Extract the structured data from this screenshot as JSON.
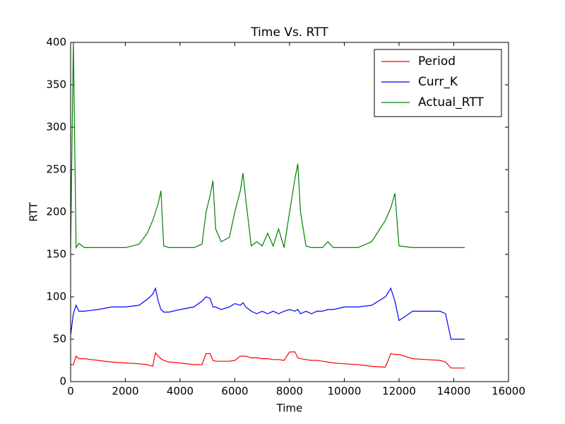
{
  "chart_data": {
    "type": "line",
    "title": "Time Vs. RTT",
    "xlabel": "Time",
    "ylabel": "RTT",
    "x": [
      0,
      100,
      200,
      300,
      500,
      1000,
      1500,
      2000,
      2500,
      2800,
      3000,
      3100,
      3200,
      3300,
      3400,
      3600,
      4000,
      4500,
      4800,
      4950,
      5100,
      5200,
      5300,
      5500,
      5800,
      6000,
      6200,
      6300,
      6400,
      6600,
      6800,
      7000,
      7200,
      7400,
      7600,
      7800,
      8000,
      8200,
      8300,
      8400,
      8600,
      8800,
      9000,
      9200,
      9400,
      9600,
      10000,
      10500,
      11000,
      11500,
      11700,
      11850,
      12000,
      12500,
      13000,
      13500,
      13700,
      13900,
      14100,
      14400
    ],
    "series": [
      {
        "name": "Period",
        "color": "#ff0000",
        "values": [
          20,
          20,
          30,
          27,
          27,
          25,
          23,
          22,
          21,
          20,
          18,
          34,
          30,
          27,
          25,
          23,
          22,
          20,
          20,
          33,
          33,
          25,
          24,
          24,
          24,
          25,
          30,
          30,
          30,
          28,
          28,
          27,
          27,
          26,
          26,
          25,
          35,
          35,
          28,
          27,
          26,
          25,
          25,
          24,
          23,
          22,
          21,
          20,
          18,
          17,
          33,
          32,
          32,
          27,
          26,
          25,
          23,
          16,
          16,
          16
        ]
      },
      {
        "name": "Curr_K",
        "color": "#0000ff",
        "values": [
          55,
          80,
          90,
          83,
          83,
          85,
          88,
          88,
          90,
          97,
          103,
          110,
          95,
          85,
          82,
          82,
          85,
          88,
          95,
          100,
          98,
          88,
          88,
          85,
          88,
          92,
          90,
          93,
          88,
          83,
          80,
          83,
          80,
          83,
          80,
          83,
          85,
          83,
          85,
          80,
          83,
          80,
          83,
          83,
          85,
          85,
          88,
          88,
          90,
          100,
          110,
          95,
          72,
          83,
          83,
          83,
          80,
          50,
          50,
          50
        ]
      },
      {
        "name": "Actual_RTT",
        "color": "#008000",
        "values": [
          158,
          400,
          158,
          163,
          158,
          158,
          158,
          158,
          162,
          175,
          190,
          200,
          210,
          225,
          160,
          158,
          158,
          158,
          162,
          200,
          220,
          237,
          180,
          165,
          170,
          200,
          225,
          246,
          215,
          160,
          165,
          160,
          175,
          160,
          180,
          158,
          200,
          240,
          257,
          200,
          160,
          158,
          158,
          158,
          165,
          158,
          158,
          158,
          165,
          190,
          205,
          222,
          160,
          158,
          158,
          158,
          158,
          158,
          158,
          158
        ]
      }
    ],
    "xlim": [
      0,
      16000
    ],
    "xticks": [
      0,
      2000,
      4000,
      6000,
      8000,
      10000,
      12000,
      14000,
      16000
    ],
    "ylim": [
      0,
      400
    ],
    "yticks": [
      0,
      50,
      100,
      150,
      200,
      250,
      300,
      350,
      400
    ],
    "legend": "upper right"
  }
}
